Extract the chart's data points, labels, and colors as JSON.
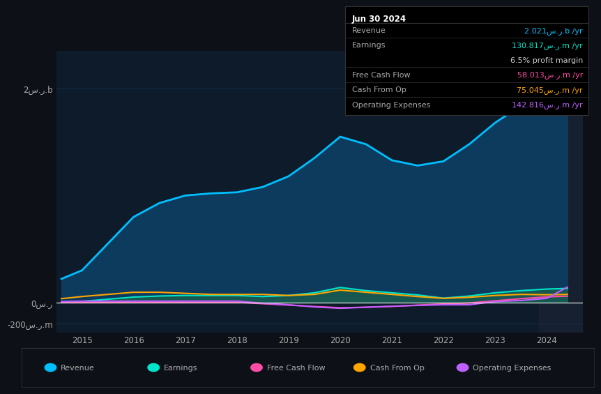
{
  "background_color": "#0d1117",
  "plot_bg_color": "#0d1b2a",
  "text_color": "#aaaaaa",
  "grid_color": "#1e3a5f",
  "title": "Jun 30 2024",
  "years": [
    2014.6,
    2015.0,
    2015.5,
    2016.0,
    2016.5,
    2017.0,
    2017.5,
    2018.0,
    2018.5,
    2019.0,
    2019.5,
    2020.0,
    2020.5,
    2021.0,
    2021.5,
    2022.0,
    2022.5,
    2023.0,
    2023.5,
    2024.0,
    2024.4
  ],
  "revenue": [
    0.22,
    0.3,
    0.55,
    0.8,
    0.93,
    1.0,
    1.02,
    1.03,
    1.08,
    1.18,
    1.35,
    1.55,
    1.48,
    1.33,
    1.28,
    1.32,
    1.48,
    1.68,
    1.84,
    1.98,
    2.021
  ],
  "earnings": [
    0.005,
    0.01,
    0.03,
    0.05,
    0.06,
    0.065,
    0.065,
    0.065,
    0.055,
    0.065,
    0.09,
    0.14,
    0.11,
    0.09,
    0.07,
    0.04,
    0.06,
    0.09,
    0.11,
    0.125,
    0.1308
  ],
  "free_cash_flow": [
    0.003,
    0.003,
    0.003,
    0.003,
    0.003,
    0.003,
    0.002,
    0.001,
    -0.012,
    -0.025,
    -0.038,
    -0.05,
    -0.045,
    -0.038,
    -0.025,
    -0.015,
    -0.005,
    0.015,
    0.035,
    0.052,
    0.058
  ],
  "cash_from_op": [
    0.035,
    0.055,
    0.075,
    0.095,
    0.095,
    0.085,
    0.075,
    0.075,
    0.075,
    0.065,
    0.075,
    0.115,
    0.095,
    0.075,
    0.055,
    0.038,
    0.048,
    0.065,
    0.075,
    0.072,
    0.075
  ],
  "operating_expenses": [
    0.008,
    0.012,
    0.012,
    0.012,
    0.012,
    0.012,
    0.012,
    0.012,
    -0.008,
    -0.022,
    -0.042,
    -0.055,
    -0.045,
    -0.035,
    -0.028,
    -0.022,
    -0.022,
    0.008,
    0.018,
    0.038,
    0.143
  ],
  "revenue_color": "#00bfff",
  "earnings_color": "#00e5cc",
  "free_cash_flow_color": "#ff4da6",
  "cash_from_op_color": "#ffa500",
  "operating_expenses_color": "#bf5fff",
  "revenue_fill_color": "#0d3b5e",
  "earnings_fill_color": "#1a5f4e",
  "highlight_color": "#162030",
  "xlim_left": 2014.5,
  "xlim_right": 2024.7,
  "ylim_bottom": -0.28,
  "ylim_top": 2.35,
  "ytick_labels": [
    "2س.ر.b",
    "0س.ر",
    "-200س.ر.m"
  ],
  "ytick_values": [
    2.0,
    0.0,
    -0.2
  ],
  "xtick_values": [
    2015,
    2016,
    2017,
    2018,
    2019,
    2020,
    2021,
    2022,
    2023,
    2024
  ],
  "highlight_start": 2023.85,
  "info_box": {
    "title": "Jun 30 2024",
    "rows": [
      {
        "label": "Revenue",
        "value": "2.021س.ر.b /yr",
        "color": "#00bfff",
        "bold_value": true
      },
      {
        "label": "Earnings",
        "value": "130.817س.ر.m /yr",
        "color": "#00e5cc",
        "bold_value": true
      },
      {
        "label": "",
        "value": "6.5% profit margin",
        "color": "#cccccc",
        "bold_value": false
      },
      {
        "label": "Free Cash Flow",
        "value": "58.013س.ر.m /yr",
        "color": "#ff4da6",
        "bold_value": true
      },
      {
        "label": "Cash From Op",
        "value": "75.045س.ر.m /yr",
        "color": "#ffa500",
        "bold_value": true
      },
      {
        "label": "Operating Expenses",
        "value": "142.816س.ر.m /yr",
        "color": "#bf5fff",
        "bold_value": true
      }
    ]
  },
  "legend": [
    {
      "label": "Revenue",
      "color": "#00bfff"
    },
    {
      "label": "Earnings",
      "color": "#00e5cc"
    },
    {
      "label": "Free Cash Flow",
      "color": "#ff4da6"
    },
    {
      "label": "Cash From Op",
      "color": "#ffa500"
    },
    {
      "label": "Operating Expenses",
      "color": "#bf5fff"
    }
  ]
}
